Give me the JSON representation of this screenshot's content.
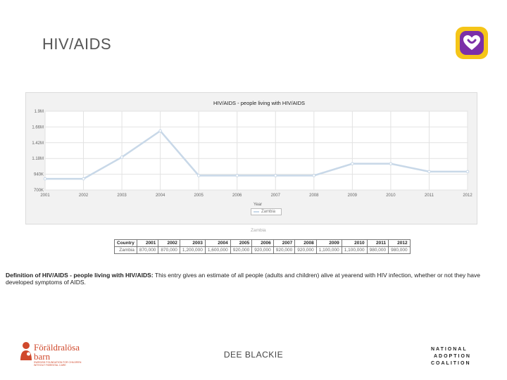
{
  "slide": {
    "title": "HIV/AIDS",
    "footer_center": "DEE BLACKIE"
  },
  "chart_data": {
    "type": "line",
    "title": "HIV/AIDS - people living with HIV/AIDS",
    "xlabel": "Year",
    "ylabel": "",
    "ytick_labels": [
      "700K",
      "940K",
      "1.18M",
      "1.42M",
      "1.66M",
      "1.9M"
    ],
    "ylim": [
      700000,
      1900000
    ],
    "x": [
      "2001",
      "2002",
      "2003",
      "2004",
      "2005",
      "2006",
      "2007",
      "2008",
      "2009",
      "2010",
      "2011",
      "2012"
    ],
    "series": [
      {
        "name": "Zambia",
        "values": [
          870000,
          870000,
          1200000,
          1600000,
          920000,
          920000,
          920000,
          920000,
          1100000,
          1100000,
          980000,
          980000
        ]
      }
    ],
    "line_color": "#c8d8e8",
    "grid": true,
    "legend": "bottom-center"
  },
  "table": {
    "caption": "Zambia",
    "header": [
      "Country",
      "2001",
      "2002",
      "2003",
      "2004",
      "2005",
      "2006",
      "2007",
      "2008",
      "2009",
      "2010",
      "2011",
      "2012"
    ],
    "row": [
      "Zambia",
      "870,000",
      "870,000",
      "1,200,000",
      "1,600,000",
      "920,000",
      "920,000",
      "920,000",
      "920,000",
      "1,100,000",
      "1,100,000",
      "980,000",
      "980,000"
    ]
  },
  "definition": {
    "label": "Definition of HIV/AIDS - people living with HIV/AIDS:",
    "text": " This entry gives an estimate of all people (adults and children) alive at yearend with HIV infection, whether or not they have developed symptoms of AIDS."
  },
  "logos": {
    "left_name_line1": "Föräldralösa",
    "left_name_line2": "barn",
    "left_sub1": "SWEDISH FOUNDATION FOR CHILDREN",
    "left_sub2": "WITHOUT PARENTAL CARE",
    "right_line1": "NATIONAL",
    "right_line2": "ADOPTION",
    "right_line3": "COALITION"
  },
  "colors": {
    "app_logo_outer": "#f5c518",
    "app_logo_inner": "#7b2fa8",
    "left_logo": "#d0492c"
  }
}
